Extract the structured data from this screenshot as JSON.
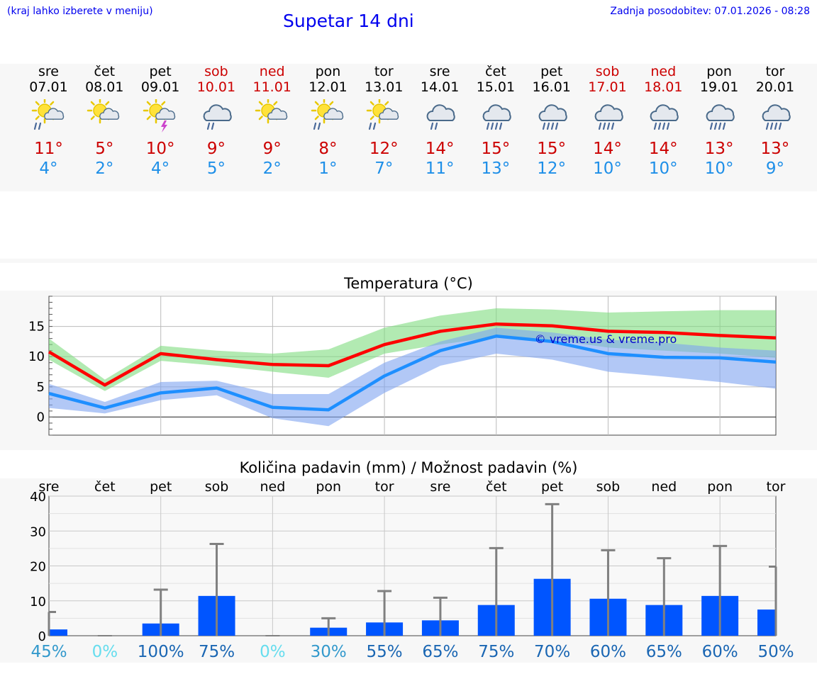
{
  "header": {
    "hint": "(kraj lahko izberete v meniju)",
    "title": "Supetar 14 dni",
    "updated": "Zadnja posodobitev: 07.01.2026 - 08:28"
  },
  "days": [
    {
      "name": "sre",
      "date": "07.01",
      "weekend": false,
      "icon": "sun-cloud-rain-icon",
      "tmax": "11°",
      "tmin": "4°"
    },
    {
      "name": "čet",
      "date": "08.01",
      "weekend": false,
      "icon": "sun-cloud-icon",
      "tmax": "5°",
      "tmin": "2°"
    },
    {
      "name": "pet",
      "date": "09.01",
      "weekend": false,
      "icon": "sun-cloud-thunder-icon",
      "tmax": "10°",
      "tmin": "4°"
    },
    {
      "name": "sob",
      "date": "10.01",
      "weekend": true,
      "icon": "cloud-rain-icon",
      "tmax": "9°",
      "tmin": "5°"
    },
    {
      "name": "ned",
      "date": "11.01",
      "weekend": true,
      "icon": "sun-cloud-icon",
      "tmax": "9°",
      "tmin": "2°"
    },
    {
      "name": "pon",
      "date": "12.01",
      "weekend": false,
      "icon": "sun-cloud-rain-icon",
      "tmax": "8°",
      "tmin": "1°"
    },
    {
      "name": "tor",
      "date": "13.01",
      "weekend": false,
      "icon": "sun-cloud-rain-icon",
      "tmax": "12°",
      "tmin": "7°"
    },
    {
      "name": "sre",
      "date": "14.01",
      "weekend": false,
      "icon": "cloud-rain-icon",
      "tmax": "14°",
      "tmin": "11°"
    },
    {
      "name": "čet",
      "date": "15.01",
      "weekend": false,
      "icon": "cloud-heavy-rain-icon",
      "tmax": "15°",
      "tmin": "13°"
    },
    {
      "name": "pet",
      "date": "16.01",
      "weekend": false,
      "icon": "cloud-heavy-rain-icon",
      "tmax": "15°",
      "tmin": "12°"
    },
    {
      "name": "sob",
      "date": "17.01",
      "weekend": true,
      "icon": "cloud-heavy-rain-icon",
      "tmax": "14°",
      "tmin": "10°"
    },
    {
      "name": "ned",
      "date": "18.01",
      "weekend": true,
      "icon": "cloud-heavy-rain-icon",
      "tmax": "14°",
      "tmin": "10°"
    },
    {
      "name": "pon",
      "date": "19.01",
      "weekend": false,
      "icon": "cloud-heavy-rain-icon",
      "tmax": "13°",
      "tmin": "10°"
    },
    {
      "name": "tor",
      "date": "20.01",
      "weekend": false,
      "icon": "cloud-heavy-rain-icon",
      "tmax": "13°",
      "tmin": "9°"
    }
  ],
  "colors": {
    "max_line": "#ff0000",
    "max_band": "#7fdc7f",
    "min_line": "#1e8fff",
    "min_band": "#7fa4f0",
    "bar": "#0055ff",
    "whisker": "#808080",
    "weekend": "#cc0000",
    "text_blue": "#1e8fe8"
  },
  "chart_data": [
    {
      "type": "line",
      "title": "Temperatura (°C)",
      "watermark": "© vreme.us & vreme.pro",
      "x": [
        0,
        1,
        2,
        3,
        4,
        5,
        6,
        7,
        8,
        9,
        10,
        11,
        12,
        13
      ],
      "ylim": [
        -3,
        20
      ],
      "yticks": [
        0,
        5,
        10,
        15
      ],
      "series": [
        {
          "name": "max",
          "values": [
            10.8,
            5.3,
            10.5,
            9.5,
            8.7,
            8.5,
            12.0,
            14.2,
            15.4,
            15.1,
            14.2,
            14.0,
            13.5,
            13.1
          ],
          "band_low": [
            9.5,
            4.3,
            9.3,
            8.5,
            7.5,
            6.5,
            10.5,
            12.0,
            13.3,
            12.8,
            11.5,
            11.0,
            10.5,
            9.8
          ],
          "band_high": [
            13.0,
            6.2,
            11.8,
            11.0,
            10.5,
            11.2,
            14.8,
            16.8,
            18.0,
            17.8,
            17.3,
            17.5,
            17.7,
            17.7
          ]
        },
        {
          "name": "min",
          "values": [
            3.9,
            1.5,
            4.0,
            4.8,
            1.6,
            1.2,
            6.8,
            11.0,
            13.4,
            12.5,
            10.5,
            9.9,
            9.8,
            9.1
          ],
          "band_low": [
            1.5,
            0.6,
            2.8,
            3.6,
            -0.2,
            -1.5,
            4.0,
            8.5,
            10.5,
            9.5,
            7.5,
            6.7,
            5.8,
            4.7
          ],
          "band_high": [
            5.5,
            2.5,
            5.8,
            6.0,
            3.8,
            3.8,
            9.0,
            12.5,
            14.8,
            14.0,
            12.8,
            12.3,
            11.5,
            11.0
          ]
        }
      ]
    },
    {
      "type": "bar",
      "title": "Količina padavin (mm) / Možnost padavin (%)",
      "categories": [
        "sre",
        "čet",
        "pet",
        "sob",
        "ned",
        "pon",
        "tor",
        "sre",
        "čet",
        "pet",
        "sob",
        "ned",
        "pon",
        "tor"
      ],
      "values": [
        1.8,
        0,
        3.5,
        11.4,
        0,
        2.3,
        3.8,
        4.4,
        8.8,
        16.3,
        10.6,
        8.8,
        11.4,
        7.5
      ],
      "error_high": [
        6.8,
        0,
        13.2,
        26.3,
        0,
        5.0,
        12.8,
        10.9,
        25.1,
        37.7,
        24.5,
        22.2,
        25.7,
        19.8
      ],
      "ylim": [
        0,
        40
      ],
      "yticks": [
        0,
        10,
        20,
        30,
        40
      ],
      "probability_labels": [
        "45%",
        "0%",
        "100%",
        "75%",
        "0%",
        "30%",
        "55%",
        "65%",
        "75%",
        "70%",
        "60%",
        "65%",
        "60%",
        "50%"
      ],
      "probability_colors": [
        "#3399cc",
        "#66ddee",
        "#1a66b3",
        "#1a66b3",
        "#66ddee",
        "#3399cc",
        "#1a66b3",
        "#1a66b3",
        "#1a66b3",
        "#1a66b3",
        "#1a66b3",
        "#1a66b3",
        "#1a66b3",
        "#1a66b3"
      ]
    }
  ]
}
